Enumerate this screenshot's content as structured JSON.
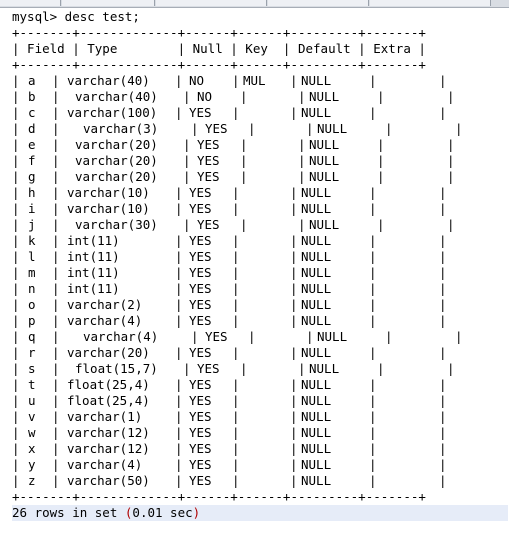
{
  "prompt": "mysql> desc test;",
  "table": {
    "border_top": "+-------+-------------+------+------+---------+-------+",
    "header_line": "| Field | Type        | Null | Key  | Default | Extra |",
    "border_mid": "+-------+-------------+------+------+---------+-------+",
    "border_bottom": "+-------+-------------+------+------+---------+-------+",
    "columns": [
      "Field",
      "Type",
      "Null",
      "Key",
      "Default",
      "Extra"
    ],
    "rows": [
      {
        "field": "a",
        "type": "varchar(40)",
        "null": "NO",
        "key": "MUL",
        "default": "NULL",
        "extra": ""
      },
      {
        "field": "b",
        "type": "varchar(40)",
        "null": "NO",
        "key": "",
        "default": "NULL",
        "extra": ""
      },
      {
        "field": "c",
        "type": "varchar(100)",
        "null": "YES",
        "key": "",
        "default": "NULL",
        "extra": ""
      },
      {
        "field": "d",
        "type": "varchar(3)",
        "null": "YES",
        "key": "",
        "default": "NULL",
        "extra": ""
      },
      {
        "field": "e",
        "type": "varchar(20)",
        "null": "YES",
        "key": "",
        "default": "NULL",
        "extra": ""
      },
      {
        "field": "f",
        "type": "varchar(20)",
        "null": "YES",
        "key": "",
        "default": "NULL",
        "extra": ""
      },
      {
        "field": "g",
        "type": "varchar(20)",
        "null": "YES",
        "key": "",
        "default": "NULL",
        "extra": ""
      },
      {
        "field": "h",
        "type": "varchar(10)",
        "null": "YES",
        "key": "",
        "default": "NULL",
        "extra": ""
      },
      {
        "field": "i",
        "type": "varchar(10)",
        "null": "YES",
        "key": "",
        "default": "NULL",
        "extra": ""
      },
      {
        "field": "j",
        "type": "varchar(30)",
        "null": "YES",
        "key": "",
        "default": "NULL",
        "extra": ""
      },
      {
        "field": "k",
        "type": "int(11)",
        "null": "YES",
        "key": "",
        "default": "NULL",
        "extra": ""
      },
      {
        "field": "l",
        "type": "int(11)",
        "null": "YES",
        "key": "",
        "default": "NULL",
        "extra": ""
      },
      {
        "field": "m",
        "type": "int(11)",
        "null": "YES",
        "key": "",
        "default": "NULL",
        "extra": ""
      },
      {
        "field": "n",
        "type": "int(11)",
        "null": "YES",
        "key": "",
        "default": "NULL",
        "extra": ""
      },
      {
        "field": "o",
        "type": "varchar(2)",
        "null": "YES",
        "key": "",
        "default": "NULL",
        "extra": ""
      },
      {
        "field": "p",
        "type": "varchar(4)",
        "null": "YES",
        "key": "",
        "default": "NULL",
        "extra": ""
      },
      {
        "field": "q",
        "type": "varchar(4)",
        "null": "YES",
        "key": "",
        "default": "NULL",
        "extra": ""
      },
      {
        "field": "r",
        "type": "varchar(20)",
        "null": "YES",
        "key": "",
        "default": "NULL",
        "extra": ""
      },
      {
        "field": "s",
        "type": "float(15,7)",
        "null": "YES",
        "key": "",
        "default": "NULL",
        "extra": ""
      },
      {
        "field": "t",
        "type": "float(25,4)",
        "null": "YES",
        "key": "",
        "default": "NULL",
        "extra": ""
      },
      {
        "field": "u",
        "type": "float(25,4)",
        "null": "YES",
        "key": "",
        "default": "NULL",
        "extra": ""
      },
      {
        "field": "v",
        "type": "varchar(1)",
        "null": "YES",
        "key": "",
        "default": "NULL",
        "extra": ""
      },
      {
        "field": "w",
        "type": "varchar(12)",
        "null": "YES",
        "key": "",
        "default": "NULL",
        "extra": ""
      },
      {
        "field": "x",
        "type": "varchar(12)",
        "null": "YES",
        "key": "",
        "default": "NULL",
        "extra": ""
      },
      {
        "field": "y",
        "type": "varchar(4)",
        "null": "YES",
        "key": "",
        "default": "NULL",
        "extra": ""
      },
      {
        "field": "z",
        "type": "varchar(50)",
        "null": "YES",
        "key": "",
        "default": "NULL",
        "extra": ""
      }
    ]
  },
  "summary": {
    "prefix": "26 rows in set ",
    "paren_open": "(",
    "timing": "0.01 sec",
    "paren_close": ")"
  },
  "colors": {
    "text": "#000000",
    "paren": "#b00000",
    "highlight": "#e6ecf8"
  }
}
